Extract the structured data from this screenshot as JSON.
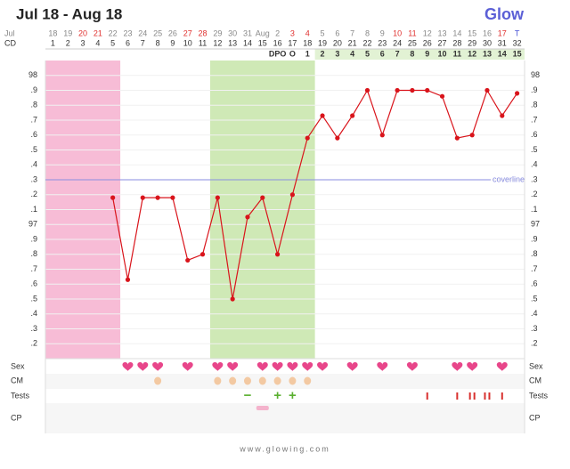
{
  "header": {
    "title": "Jul 18 - Aug 18",
    "brand": "Glow"
  },
  "chart_data": {
    "type": "line",
    "row_labels": {
      "date": "Jul",
      "cd": "CD",
      "dpo": "DPO"
    },
    "categories": [
      18,
      19,
      20,
      21,
      22,
      23,
      24,
      25,
      26,
      27,
      28,
      29,
      30,
      31,
      "Aug",
      2,
      3,
      4,
      5,
      6,
      7,
      8,
      9,
      10,
      11,
      12,
      13,
      14,
      15,
      16,
      17,
      "T"
    ],
    "category_colors": [
      "#888",
      "#888",
      "#e0312f",
      "#e0312f",
      "#888",
      "#888",
      "#888",
      "#888",
      "#888",
      "#e0312f",
      "#e0312f",
      "#888",
      "#888",
      "#888",
      "#888",
      "#888",
      "#e0312f",
      "#e0312f",
      "#888",
      "#888",
      "#888",
      "#888",
      "#888",
      "#e0312f",
      "#e0312f",
      "#888",
      "#888",
      "#888",
      "#888",
      "#888",
      "#e0312f",
      "#4a55d6"
    ],
    "cd": [
      1,
      2,
      3,
      4,
      5,
      6,
      7,
      8,
      9,
      10,
      11,
      12,
      13,
      14,
      15,
      16,
      17,
      18,
      19,
      20,
      21,
      22,
      23,
      24,
      25,
      26,
      27,
      28,
      29,
      30,
      31,
      32
    ],
    "dpo": [
      null,
      null,
      null,
      null,
      null,
      null,
      null,
      null,
      null,
      null,
      null,
      null,
      null,
      null,
      null,
      null,
      "O",
      1,
      2,
      3,
      4,
      5,
      6,
      7,
      8,
      9,
      10,
      11,
      12,
      13,
      14,
      15
    ],
    "values": [
      null,
      null,
      null,
      null,
      97.18,
      96.63,
      97.18,
      97.18,
      97.18,
      96.76,
      96.8,
      97.18,
      96.5,
      97.05,
      97.18,
      96.8,
      97.2,
      97.58,
      97.73,
      97.58,
      97.73,
      97.9,
      97.6,
      97.9,
      97.9,
      97.9,
      97.86,
      97.58,
      97.6,
      97.9,
      97.73,
      97.88
    ],
    "color": "#d9141b",
    "ylim": [
      96.1,
      98.1
    ],
    "yticks": [
      98,
      {
        "value": 97.9,
        "label": ".9"
      },
      {
        "value": 97.8,
        "label": ".8"
      },
      {
        "value": 97.7,
        "label": ".7"
      },
      {
        "value": 97.6,
        "label": ".6"
      },
      {
        "value": 97.5,
        "label": ".5"
      },
      {
        "value": 97.4,
        "label": ".4"
      },
      {
        "value": 97.3,
        "label": ".3"
      },
      {
        "value": 97.2,
        "label": ".2"
      },
      {
        "value": 97.1,
        "label": ".1"
      },
      97,
      {
        "value": 96.9,
        "label": ".9"
      },
      {
        "value": 96.8,
        "label": ".8"
      },
      {
        "value": 96.7,
        "label": ".7"
      },
      {
        "value": 96.6,
        "label": ".6"
      },
      {
        "value": 96.5,
        "label": ".5"
      },
      {
        "value": 96.4,
        "label": ".4"
      },
      {
        "value": 96.3,
        "label": ".3"
      },
      {
        "value": 96.2,
        "label": ".2"
      }
    ],
    "grid": true,
    "coverline": {
      "value": 97.3,
      "label": "coverline",
      "color": "#8a8ee0"
    },
    "bands": [
      {
        "from": 1,
        "to": 5,
        "color": "#f7bcd6"
      },
      {
        "from": 12,
        "to": 18,
        "color": "#cfe9b6"
      }
    ],
    "dpo_highlight": {
      "from": 19,
      "to": 32,
      "color": "#e2f2d4"
    },
    "rows": {
      "sex": {
        "label": "Sex",
        "days": [
          6,
          7,
          8,
          10,
          12,
          13,
          15,
          16,
          17,
          18,
          19,
          21,
          23,
          25,
          28,
          29,
          31
        ],
        "color": "#e8468a"
      },
      "cm": {
        "label": "CM",
        "days": [
          8,
          12,
          13,
          14,
          15,
          16,
          17,
          18
        ],
        "color": "#f3c9a2"
      },
      "tests": {
        "label": "Tests",
        "results": [
          {
            "day": 14,
            "label": "−"
          },
          {
            "day": 16,
            "label": "+"
          },
          {
            "day": 17,
            "label": "+"
          }
        ],
        "result_color": "#5bb030",
        "marks": [
          {
            "day": 26,
            "count": 1
          },
          {
            "day": 28,
            "count": 1
          },
          {
            "day": 29,
            "count": 2
          },
          {
            "day": 30,
            "count": 2
          },
          {
            "day": 31,
            "count": 1
          }
        ],
        "mark_color": "#d8312f"
      },
      "cp": {
        "label": "CP",
        "days": [
          15
        ],
        "color": "#f4b3cc"
      }
    }
  },
  "footer": "www.glowing.com"
}
